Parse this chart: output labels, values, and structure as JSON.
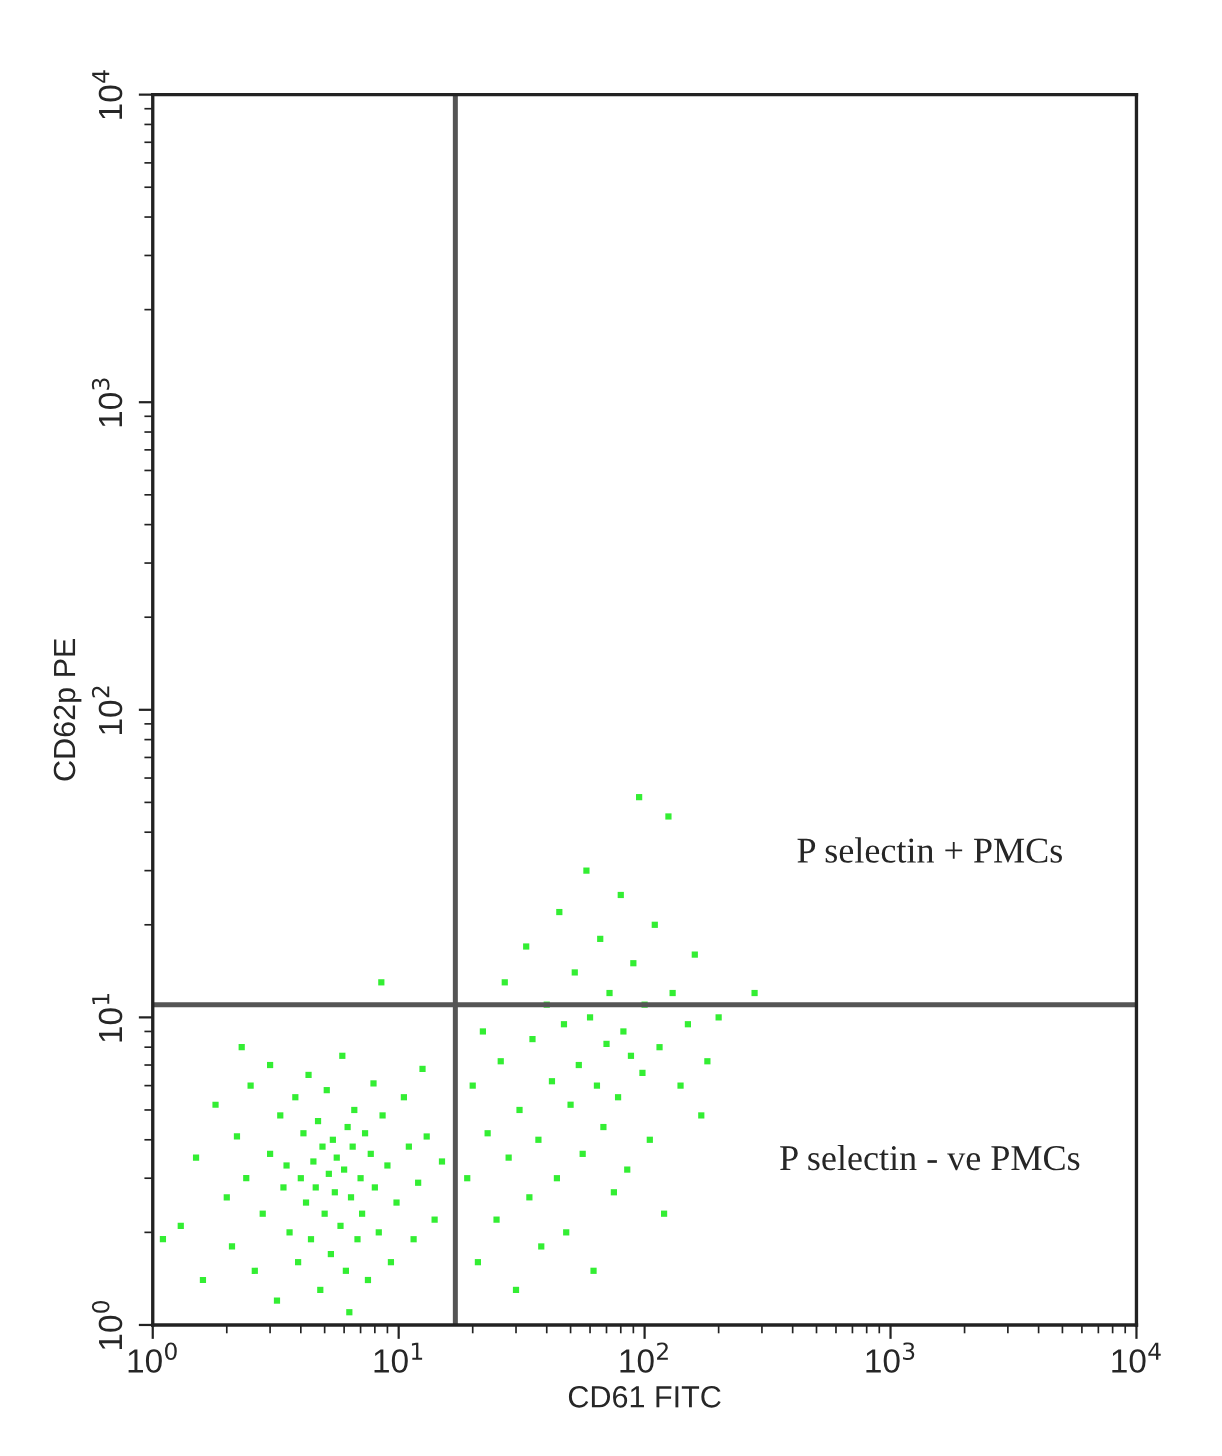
{
  "chart_data": {
    "type": "scatter",
    "xlabel": "CD61 FITC",
    "ylabel": "CD62p PE",
    "log": "xy",
    "grid": false,
    "marker": "square",
    "xlim": [
      1,
      10000
    ],
    "ylim": [
      1,
      10000
    ],
    "xticks": [
      {
        "value": 1,
        "label": "10$^{0}$"
      },
      {
        "value": 10,
        "label": "10$^{1}$"
      },
      {
        "value": 100,
        "label": "10$^{2}$"
      },
      {
        "value": 1000,
        "label": "10$^{3}$"
      },
      {
        "value": 10000,
        "label": "10$^{4}$"
      }
    ],
    "yticks": [
      {
        "value": 1,
        "label": "10$^{0}$"
      },
      {
        "value": 10,
        "label": "10$^{1}$"
      },
      {
        "value": 100,
        "label": "10$^{2}$"
      },
      {
        "value": 1000,
        "label": "10$^{3}$"
      },
      {
        "value": 10000,
        "label": "10$^{4}$"
      }
    ],
    "ref_lines": [
      {
        "axis": "x",
        "value": 17,
        "color": "#555555"
      },
      {
        "axis": "y",
        "value": 11,
        "color": "#555555"
      }
    ],
    "annotations": [
      "P selectin + PMCs",
      "P selectin - ve PMCs"
    ],
    "series": [
      {
        "color": "#33ee33",
        "x": [
          1.3,
          1.5,
          1.6,
          1.8,
          2.0,
          2.1,
          2.2,
          2.4,
          2.5,
          2.6,
          2.8,
          3.0,
          3.0,
          3.2,
          3.3,
          3.4,
          3.5,
          3.6,
          3.8,
          3.9,
          4.0,
          4.1,
          4.2,
          4.3,
          4.4,
          4.5,
          4.6,
          4.7,
          4.8,
          4.9,
          5.0,
          5.1,
          5.2,
          5.3,
          5.4,
          5.5,
          5.6,
          5.8,
          5.9,
          6.0,
          6.1,
          6.2,
          6.4,
          6.5,
          6.6,
          6.8,
          7.0,
          7.1,
          7.3,
          7.5,
          7.7,
          7.9,
          8.0,
          8.3,
          8.6,
          9.0,
          9.3,
          9.8,
          10.5,
          11,
          11.5,
          12,
          12.5,
          13,
          14,
          15,
          8.5,
          1.1,
          2.3,
          6.3,
          19,
          20,
          21,
          22,
          23,
          25,
          26,
          27,
          28,
          30,
          31,
          33,
          34,
          35,
          37,
          38,
          40,
          42,
          44,
          45,
          47,
          48,
          50,
          52,
          54,
          56,
          58,
          60,
          62,
          64,
          66,
          68,
          70,
          72,
          75,
          78,
          80,
          82,
          85,
          88,
          90,
          95,
          98,
          100,
          105,
          110,
          115,
          120,
          125,
          130,
          140,
          150,
          160,
          170,
          180,
          200,
          280
        ],
        "values": [
          2.1,
          3.5,
          1.4,
          5.2,
          2.6,
          1.8,
          4.1,
          3.0,
          6.0,
          1.5,
          2.3,
          3.6,
          7.0,
          1.2,
          4.8,
          2.8,
          3.3,
          2.0,
          5.5,
          1.6,
          3.0,
          4.2,
          2.5,
          6.5,
          1.9,
          3.4,
          2.8,
          4.6,
          1.3,
          3.8,
          2.3,
          5.8,
          3.1,
          1.7,
          4.0,
          2.7,
          3.5,
          2.1,
          7.5,
          3.2,
          1.5,
          4.4,
          2.6,
          3.8,
          5.0,
          1.9,
          3.0,
          2.3,
          4.2,
          1.4,
          3.6,
          6.1,
          2.8,
          2.0,
          4.8,
          3.3,
          1.6,
          2.5,
          5.5,
          3.8,
          1.9,
          2.9,
          6.8,
          4.1,
          2.2,
          3.4,
          13,
          1.9,
          8.0,
          1.1,
          3.0,
          6.0,
          1.6,
          9.0,
          4.2,
          2.2,
          7.2,
          13,
          3.5,
          1.3,
          5.0,
          17,
          2.6,
          8.5,
          4.0,
          1.8,
          11,
          6.2,
          3.0,
          22,
          9.5,
          2.0,
          5.2,
          14,
          7.0,
          3.6,
          30,
          10,
          1.5,
          6.0,
          18,
          4.4,
          8.2,
          12,
          2.7,
          5.5,
          25,
          9.0,
          3.2,
          7.5,
          15,
          52,
          6.6,
          11,
          4.0,
          20,
          8.0,
          2.3,
          45,
          12,
          6.0,
          9.5,
          16,
          4.8,
          7.2,
          10,
          12
        ]
      }
    ]
  }
}
